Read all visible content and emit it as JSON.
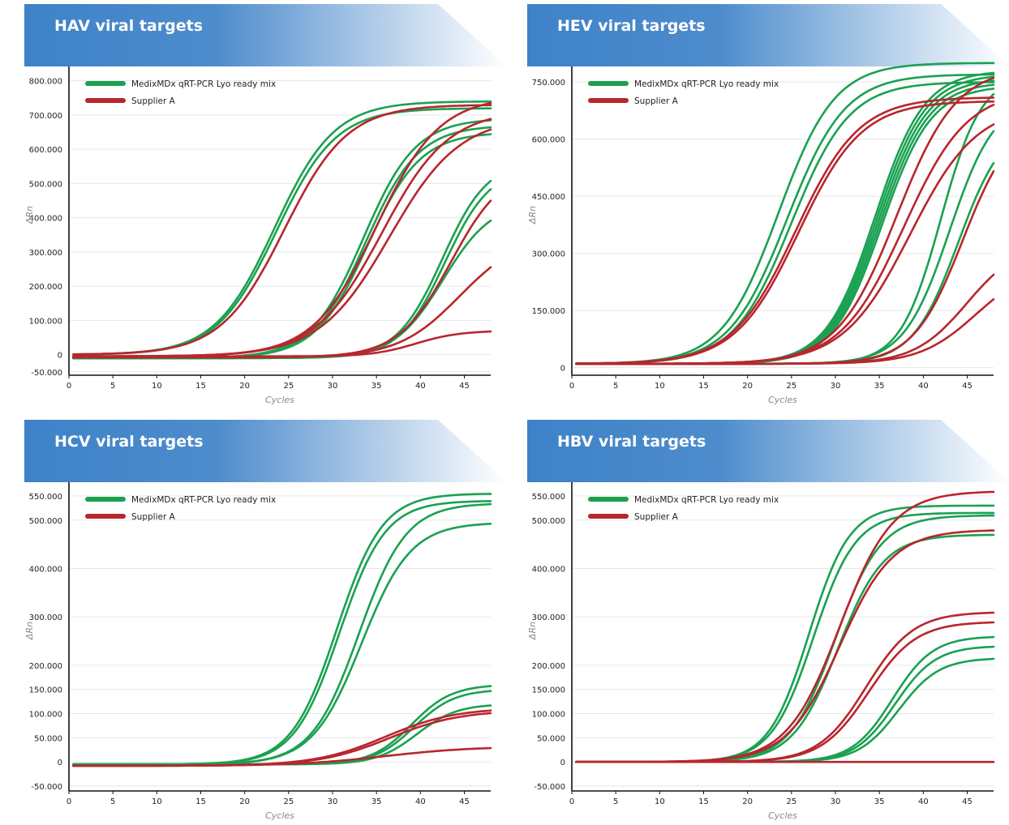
{
  "colors": {
    "medix": "#1aa151",
    "supplier": "#b8262e",
    "banner_start": "#3e82c8",
    "banner_end": "#ffffff"
  },
  "chart_data": [
    {
      "type": "line",
      "title": "HAV viral targets",
      "xlabel": "Cycles",
      "ylabel": "ΔRn",
      "xlim": [
        0,
        48
      ],
      "ylim": [
        -60000,
        830000
      ],
      "x_ticks": [
        0,
        5,
        10,
        15,
        20,
        25,
        30,
        35,
        40,
        45
      ],
      "x_tick_labels": [
        "0",
        "5",
        "10",
        "15",
        "20",
        "25",
        "30",
        "35",
        "40",
        "45"
      ],
      "y_ticks": [
        -50000,
        0,
        100000,
        200000,
        300000,
        400000,
        500000,
        600000,
        700000,
        800000
      ],
      "y_tick_labels": [
        "-50.000",
        "0",
        "100.000",
        "200.000",
        "300.000",
        "400.000",
        "500.000",
        "600.000",
        "700.000",
        "800.000"
      ],
      "legend": {
        "position": "top-left",
        "entries": [
          "MedixMDx qRT-PCR Lyo ready mix",
          "Supplier A"
        ]
      },
      "series": [
        {
          "group": "medix",
          "params": [
            740000,
            23.4,
            3.4,
            0
          ]
        },
        {
          "group": "medix",
          "params": [
            720000,
            23.6,
            3.4,
            0
          ]
        },
        {
          "group": "medix",
          "params": [
            700000,
            33.5,
            3.0,
            -10000
          ]
        },
        {
          "group": "medix",
          "params": [
            680000,
            33.8,
            3.0,
            -10000
          ]
        },
        {
          "group": "medix",
          "params": [
            660000,
            34.0,
            3.0,
            -10000
          ]
        },
        {
          "group": "medix",
          "params": [
            580000,
            42.5,
            2.6,
            -10000
          ]
        },
        {
          "group": "medix",
          "params": [
            560000,
            42.8,
            2.6,
            -10000
          ]
        },
        {
          "group": "medix",
          "params": [
            460000,
            42.6,
            2.8,
            -10000
          ]
        },
        {
          "group": "supplier",
          "params": [
            730000,
            24.5,
            3.6,
            0
          ]
        },
        {
          "group": "supplier",
          "params": [
            760000,
            35.0,
            3.6,
            -5000
          ]
        },
        {
          "group": "supplier",
          "params": [
            720000,
            35.6,
            3.8,
            -5000
          ]
        },
        {
          "group": "supplier",
          "params": [
            700000,
            36.5,
            4.0,
            -5000
          ]
        },
        {
          "group": "supplier",
          "params": [
            560000,
            43.5,
            3.0,
            -8000
          ]
        },
        {
          "group": "supplier",
          "params": [
            360000,
            44.5,
            3.5,
            -8000
          ]
        },
        {
          "group": "supplier",
          "params": [
            75000,
            39.5,
            2.5,
            -5000
          ]
        }
      ]
    },
    {
      "type": "line",
      "title": "HEV viral targets",
      "xlabel": "Cycles",
      "ylabel": "ΔRn",
      "xlim": [
        0,
        48
      ],
      "ylim": [
        -20000,
        780000
      ],
      "x_ticks": [
        0,
        5,
        10,
        15,
        20,
        25,
        30,
        35,
        40,
        45
      ],
      "x_tick_labels": [
        "0",
        "5",
        "10",
        "15",
        "20",
        "25",
        "30",
        "35",
        "40",
        "45"
      ],
      "y_ticks": [
        0,
        150000,
        300000,
        450000,
        600000,
        750000
      ],
      "y_tick_labels": [
        "0",
        "150.000",
        "300.000",
        "450.000",
        "600.000",
        "750.000"
      ],
      "legend": {
        "position": "top-left",
        "entries": [
          "MedixMDx qRT-PCR Lyo ready mix",
          "Supplier A"
        ]
      },
      "series": [
        {
          "group": "medix",
          "params": [
            790000,
            23.5,
            3.2,
            10000
          ]
        },
        {
          "group": "medix",
          "params": [
            760000,
            24.5,
            3.3,
            10000
          ]
        },
        {
          "group": "medix",
          "params": [
            740000,
            25.0,
            3.3,
            10000
          ]
        },
        {
          "group": "medix",
          "params": [
            770000,
            34.5,
            2.8,
            10000
          ]
        },
        {
          "group": "medix",
          "params": [
            760000,
            34.7,
            2.8,
            10000
          ]
        },
        {
          "group": "medix",
          "params": [
            750000,
            34.9,
            2.8,
            10000
          ]
        },
        {
          "group": "medix",
          "params": [
            740000,
            35.1,
            2.8,
            10000
          ]
        },
        {
          "group": "medix",
          "params": [
            730000,
            35.3,
            2.8,
            10000
          ]
        },
        {
          "group": "medix",
          "params": [
            760000,
            42.0,
            2.3,
            10000
          ]
        },
        {
          "group": "medix",
          "params": [
            700000,
            43.0,
            2.6,
            10000
          ]
        },
        {
          "group": "medix",
          "params": [
            640000,
            44.0,
            2.6,
            10000
          ]
        },
        {
          "group": "supplier",
          "params": [
            700000,
            25.5,
            3.6,
            10000
          ]
        },
        {
          "group": "supplier",
          "params": [
            690000,
            25.8,
            3.6,
            10000
          ]
        },
        {
          "group": "supplier",
          "params": [
            780000,
            37.0,
            3.4,
            10000
          ]
        },
        {
          "group": "supplier",
          "params": [
            720000,
            37.8,
            3.6,
            10000
          ]
        },
        {
          "group": "supplier",
          "params": [
            680000,
            38.5,
            3.8,
            10000
          ]
        },
        {
          "group": "supplier",
          "params": [
            650000,
            44.5,
            2.8,
            10000
          ]
        },
        {
          "group": "supplier",
          "params": [
            320000,
            45.0,
            3.0,
            10000
          ]
        },
        {
          "group": "supplier",
          "params": [
            260000,
            46.0,
            3.2,
            10000
          ]
        }
      ]
    },
    {
      "type": "line",
      "title": "HCV viral targets",
      "xlabel": "Cycles",
      "ylabel": "ΔRn",
      "xlim": [
        0,
        48
      ],
      "ylim": [
        -60000,
        570000
      ],
      "x_ticks": [
        0,
        5,
        10,
        15,
        20,
        25,
        30,
        35,
        40,
        45
      ],
      "x_tick_labels": [
        "0",
        "5",
        "10",
        "15",
        "20",
        "25",
        "30",
        "35",
        "40",
        "45"
      ],
      "y_ticks": [
        -50000,
        0,
        50000,
        100000,
        150000,
        200000,
        300000,
        400000,
        500000,
        550000
      ],
      "y_tick_labels": [
        "-50.000",
        "0",
        "50.000",
        "100.000",
        "150.000",
        "200.000",
        "300.000",
        "400.000",
        "500.000",
        "550.000"
      ],
      "legend": {
        "position": "top-left",
        "entries": [
          "MedixMDx qRT-PCR Lyo ready mix",
          "Supplier A"
        ]
      },
      "series": [
        {
          "group": "medix",
          "params": [
            560000,
            30.5,
            2.6,
            -5000
          ]
        },
        {
          "group": "medix",
          "params": [
            545000,
            30.8,
            2.6,
            -5000
          ]
        },
        {
          "group": "medix",
          "params": [
            540000,
            33.0,
            2.7,
            -5000
          ]
        },
        {
          "group": "medix",
          "params": [
            500000,
            33.3,
            2.8,
            -5000
          ]
        },
        {
          "group": "medix",
          "params": [
            165000,
            39.0,
            2.3,
            -5000
          ]
        },
        {
          "group": "medix",
          "params": [
            155000,
            39.3,
            2.3,
            -5000
          ]
        },
        {
          "group": "medix",
          "params": [
            125000,
            39.6,
            2.3,
            -5000
          ]
        },
        {
          "group": "supplier",
          "params": [
            120000,
            36.0,
            4.0,
            -8000
          ]
        },
        {
          "group": "supplier",
          "params": [
            115000,
            36.5,
            4.0,
            -8000
          ]
        },
        {
          "group": "supplier",
          "params": [
            40000,
            36.0,
            5.0,
            -8000
          ]
        }
      ]
    },
    {
      "type": "line",
      "title": "HBV viral targets",
      "xlabel": "Cycles",
      "ylabel": "ΔRn",
      "xlim": [
        0,
        48
      ],
      "ylim": [
        -60000,
        570000
      ],
      "x_ticks": [
        0,
        5,
        10,
        15,
        20,
        25,
        30,
        35,
        40,
        45
      ],
      "x_tick_labels": [
        "0",
        "5",
        "10",
        "15",
        "20",
        "25",
        "30",
        "35",
        "40",
        "45"
      ],
      "y_ticks": [
        -50000,
        0,
        50000,
        100000,
        150000,
        200000,
        300000,
        400000,
        500000,
        550000
      ],
      "y_tick_labels": [
        "-50.000",
        "0",
        "50.000",
        "100.000",
        "150.000",
        "200.000",
        "300.000",
        "400.000",
        "500.000",
        "550.000"
      ],
      "legend": {
        "position": "top-left",
        "entries": [
          "MedixMDx qRT-PCR Lyo ready mix",
          "Supplier A"
        ]
      },
      "series": [
        {
          "group": "medix",
          "params": [
            530000,
            27.0,
            2.3,
            0
          ]
        },
        {
          "group": "medix",
          "params": [
            515000,
            27.5,
            2.4,
            0
          ]
        },
        {
          "group": "medix",
          "params": [
            510000,
            30.0,
            2.6,
            0
          ]
        },
        {
          "group": "medix",
          "params": [
            470000,
            30.3,
            2.6,
            0
          ]
        },
        {
          "group": "medix",
          "params": [
            260000,
            36.5,
            2.3,
            0
          ]
        },
        {
          "group": "medix",
          "params": [
            240000,
            36.8,
            2.3,
            0
          ]
        },
        {
          "group": "medix",
          "params": [
            215000,
            37.2,
            2.3,
            0
          ]
        },
        {
          "group": "supplier",
          "params": [
            560000,
            30.5,
            3.0,
            0
          ]
        },
        {
          "group": "supplier",
          "params": [
            480000,
            30.5,
            3.0,
            0
          ]
        },
        {
          "group": "supplier",
          "params": [
            310000,
            33.5,
            2.7,
            0
          ]
        },
        {
          "group": "supplier",
          "params": [
            290000,
            33.8,
            2.7,
            0
          ]
        },
        {
          "group": "supplier",
          "params": [
            0,
            30,
            3,
            0
          ]
        }
      ]
    }
  ]
}
